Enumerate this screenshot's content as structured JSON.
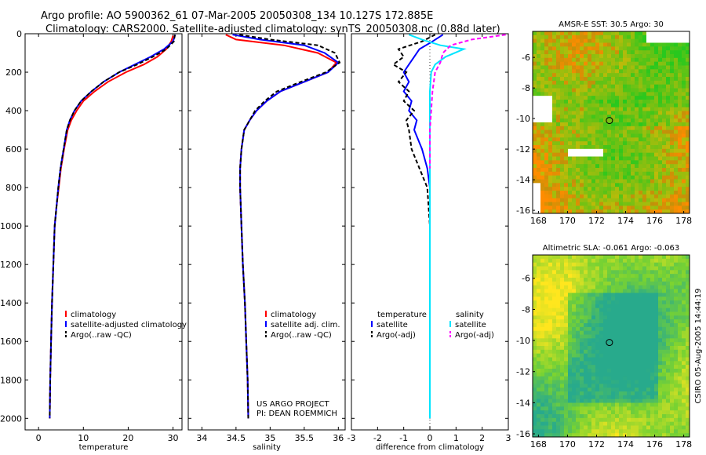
{
  "header": {
    "line1": "Argo profile: AO 5900362_61 07-Mar-2005 20050308_134 10.127S 172.885E",
    "line2": "Climatology: CARS2000. Satellite-adjusted climatology: synTS_20050308.nc (0.88d later)"
  },
  "colors": {
    "climatology": "#ff0000",
    "satellite": "#0000ff",
    "argo": "#000000",
    "salinity_satellite": "#00e5ff",
    "salinity_argo": "#ff00ff"
  },
  "chart_data": [
    {
      "id": "temperature",
      "type": "line",
      "xlabel": "temperature",
      "xlim": [
        -3,
        32
      ],
      "ylim": [
        2060,
        0
      ],
      "xticks": [
        0,
        10,
        20,
        30
      ],
      "yticks": [
        0,
        200,
        400,
        600,
        800,
        1000,
        1200,
        1400,
        1600,
        1800,
        2000
      ],
      "legend": [
        "climatology",
        "satellite-adjusted climatology",
        "Argo(..raw -QC)"
      ],
      "annotation": [],
      "series": [
        {
          "name": "climatology",
          "color": "#ff0000",
          "dash": "",
          "x": [
            30.0,
            29.6,
            28.5,
            26.5,
            23.5,
            19.5,
            15.5,
            12.5,
            10.0,
            8.5,
            7.3,
            6.5,
            5.7,
            5.0,
            4.5,
            4.0,
            3.6,
            3.3,
            3.0,
            2.8,
            2.6,
            2.5
          ],
          "y": [
            10,
            40,
            80,
            120,
            160,
            200,
            250,
            300,
            350,
            400,
            450,
            500,
            600,
            700,
            800,
            900,
            1000,
            1200,
            1400,
            1600,
            1800,
            2000
          ]
        },
        {
          "name": "satellite-adjusted climatology",
          "color": "#0000ff",
          "dash": "",
          "x": [
            30.5,
            30.0,
            28.0,
            25.0,
            21.5,
            18.0,
            14.5,
            11.8,
            9.5,
            8.0,
            7.0,
            6.3,
            5.6,
            4.9,
            4.4,
            4.0,
            3.6,
            3.3,
            3.0,
            2.8,
            2.6,
            2.5
          ],
          "y": [
            5,
            40,
            80,
            120,
            160,
            200,
            250,
            300,
            350,
            400,
            450,
            500,
            600,
            700,
            800,
            900,
            1000,
            1200,
            1400,
            1600,
            1800,
            2000
          ]
        },
        {
          "name": "Argo(..raw -QC)",
          "color": "#000000",
          "dash": "5,3",
          "x": [
            30.4,
            30.2,
            28.5,
            25.5,
            22.0,
            18.0,
            14.5,
            11.8,
            9.5,
            8.0,
            7.0,
            6.3,
            5.6,
            4.9,
            4.4,
            4.0,
            3.6,
            3.3,
            3.0,
            2.8,
            2.6,
            2.5
          ],
          "y": [
            5,
            40,
            80,
            120,
            160,
            200,
            250,
            300,
            350,
            400,
            450,
            500,
            600,
            700,
            800,
            900,
            1000,
            1200,
            1400,
            1600,
            1800,
            2000
          ]
        }
      ]
    },
    {
      "id": "salinity",
      "type": "line",
      "xlabel": "salinity",
      "xlim": [
        33.8,
        36.1
      ],
      "ylim": [
        2060,
        0
      ],
      "xticks": [
        34,
        34.5,
        35,
        35.5,
        36
      ],
      "yticks": [
        0,
        200,
        400,
        600,
        800,
        1000,
        1200,
        1400,
        1600,
        1800,
        2000
      ],
      "legend": [
        "climatology",
        "satellite adj. clim.",
        "Argo(..raw -QC)"
      ],
      "annotation": [
        "US ARGO PROJECT",
        "PI: DEAN ROEMMICH"
      ],
      "series": [
        {
          "name": "climatology",
          "color": "#ff0000",
          "dash": "",
          "x": [
            34.35,
            34.5,
            35.2,
            35.7,
            35.97,
            35.85,
            35.5,
            35.15,
            34.95,
            34.8,
            34.7,
            34.62,
            34.58,
            34.56,
            34.56,
            34.58,
            34.6,
            34.63,
            34.65,
            34.67,
            34.68
          ],
          "y": [
            5,
            30,
            60,
            100,
            150,
            200,
            250,
            300,
            350,
            400,
            450,
            500,
            600,
            700,
            800,
            1000,
            1200,
            1400,
            1600,
            1800,
            2000
          ]
        },
        {
          "name": "satellite adj. clim.",
          "color": "#0000ff",
          "dash": "",
          "x": [
            34.45,
            34.85,
            35.5,
            35.8,
            36.0,
            35.85,
            35.5,
            35.15,
            34.95,
            34.8,
            34.7,
            34.62,
            34.58,
            34.56,
            34.56,
            34.58,
            34.6,
            34.63,
            34.65,
            34.67,
            34.68
          ],
          "y": [
            5,
            30,
            60,
            100,
            150,
            200,
            250,
            300,
            350,
            400,
            450,
            500,
            600,
            700,
            800,
            1000,
            1200,
            1400,
            1600,
            1800,
            2000
          ]
        },
        {
          "name": "Argo(..raw -QC)",
          "color": "#000000",
          "dash": "5,3",
          "x": [
            34.55,
            35.0,
            35.7,
            35.95,
            36.02,
            35.82,
            35.45,
            35.1,
            34.92,
            34.78,
            34.7,
            34.62,
            34.58,
            34.56,
            34.56,
            34.58,
            34.6,
            34.63,
            34.65,
            34.67,
            34.68
          ],
          "y": [
            5,
            30,
            60,
            100,
            150,
            200,
            250,
            300,
            350,
            400,
            450,
            500,
            600,
            700,
            800,
            1000,
            1200,
            1400,
            1600,
            1800,
            2000
          ]
        }
      ]
    },
    {
      "id": "difference",
      "type": "line",
      "xlabel": "difference from climatology",
      "xlim": [
        -3,
        3
      ],
      "ylim": [
        2060,
        0
      ],
      "xticks": [
        -3,
        -2,
        -1,
        0,
        1,
        2,
        3
      ],
      "yticks": [
        0,
        200,
        400,
        600,
        800,
        1000,
        1200,
        1400,
        1600,
        1800,
        2000
      ],
      "legend": [
        "temperature",
        "satellite",
        "Argo(-adj)",
        "salinity",
        "satellite",
        "Argo(-adj)"
      ],
      "annotation": [],
      "series": [
        {
          "name": "temperature satellite",
          "color": "#0000ff",
          "dash": "",
          "x": [
            0.5,
            0.1,
            -0.4,
            -0.6,
            -0.8,
            -1.0,
            -0.8,
            -1.0,
            -0.7,
            -0.8,
            -0.5,
            -0.6,
            -0.3,
            -0.1,
            0,
            0,
            0,
            0,
            0
          ],
          "y": [
            5,
            40,
            80,
            120,
            160,
            200,
            250,
            300,
            350,
            400,
            450,
            500,
            600,
            700,
            800,
            1000,
            1200,
            1600,
            2000
          ]
        },
        {
          "name": "temperature Argo(-adj)",
          "color": "#000000",
          "dash": "5,3",
          "x": [
            0.2,
            -0.3,
            -1.2,
            -1.0,
            -1.4,
            -0.9,
            -1.2,
            -0.8,
            -1.0,
            -0.6,
            -0.9,
            -0.8,
            -0.7,
            -0.4,
            -0.1,
            0,
            0,
            0,
            0
          ],
          "y": [
            5,
            40,
            80,
            120,
            160,
            200,
            250,
            300,
            350,
            400,
            450,
            500,
            600,
            700,
            800,
            1000,
            1200,
            1600,
            2000
          ]
        },
        {
          "name": "salinity satellite",
          "color": "#00e5ff",
          "dash": "",
          "x": [
            -0.8,
            -0.3,
            0.4,
            1.3,
            0.6,
            0.2,
            0.05,
            0,
            0,
            0,
            0,
            0,
            0
          ],
          "y": [
            5,
            30,
            60,
            80,
            120,
            160,
            200,
            300,
            400,
            600,
            1000,
            1500,
            2000
          ]
        },
        {
          "name": "salinity Argo(-adj)",
          "color": "#ff00ff",
          "dash": "5,3",
          "x": [
            2.9,
            1.6,
            0.8,
            0.5,
            0.4,
            0.2,
            0.15,
            0.1,
            0.05,
            0,
            0,
            0
          ],
          "y": [
            5,
            30,
            60,
            100,
            150,
            200,
            250,
            300,
            400,
            500,
            600,
            700
          ]
        }
      ]
    },
    {
      "id": "sst_map",
      "type": "heatmap",
      "title": "AMSR-E SST: 30.5 Argo: 30",
      "xticks": [
        168,
        170,
        172,
        174,
        176,
        178
      ],
      "yticks": [
        -6,
        -8,
        -10,
        -12,
        -14,
        -16
      ],
      "xlim": [
        167.6,
        178.4
      ],
      "ylim": [
        -16.2,
        -4.3
      ],
      "marker": {
        "lon": 172.885,
        "lat": -10.127
      },
      "side_label": ""
    },
    {
      "id": "sla_map",
      "type": "heatmap",
      "title": "Altimetric SLA: -0.061 Argo: -0.063",
      "xticks": [
        168,
        170,
        172,
        174,
        176,
        178
      ],
      "yticks": [
        -6,
        -8,
        -10,
        -12,
        -14,
        -16
      ],
      "xlim": [
        167.6,
        178.4
      ],
      "ylim": [
        -16.2,
        -4.5
      ],
      "marker": {
        "lon": 172.885,
        "lat": -10.127
      },
      "side_label": "CSIRO 05-Aug-2005 14:44:19"
    }
  ]
}
